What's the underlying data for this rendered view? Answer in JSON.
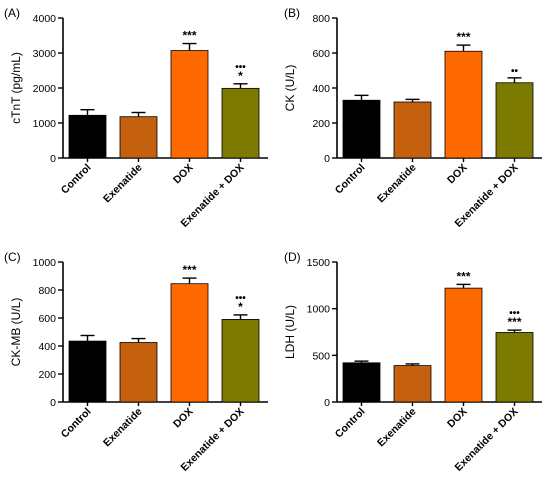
{
  "chart_data": [
    {
      "panel_label": "(A)",
      "type": "bar",
      "ylabel": "cTnT (pg/mL)",
      "ylim": [
        0,
        4000
      ],
      "yticks": [
        0,
        1000,
        2000,
        3000,
        4000
      ],
      "categories": [
        "Control",
        "Exenatide",
        "DOX",
        "Exenatide + DOX"
      ],
      "values": [
        1220,
        1180,
        3070,
        1990
      ],
      "errors": [
        160,
        120,
        200,
        130
      ],
      "annotations": [
        "",
        "",
        "***",
        "•••\n*"
      ]
    },
    {
      "panel_label": "(B)",
      "type": "bar",
      "ylabel": "CK (U/L)",
      "ylim": [
        0,
        800
      ],
      "yticks": [
        0,
        200,
        400,
        600,
        800
      ],
      "categories": [
        "Control",
        "Exenatide",
        "DOX",
        "Exenatide + DOX"
      ],
      "values": [
        330,
        320,
        610,
        430
      ],
      "errors": [
        28,
        15,
        35,
        28
      ],
      "annotations": [
        "",
        "",
        "***",
        "••"
      ]
    },
    {
      "panel_label": "(C)",
      "type": "bar",
      "ylabel": "CK-MB (U/L)",
      "ylim": [
        0,
        1000
      ],
      "yticks": [
        0,
        200,
        400,
        600,
        800,
        1000
      ],
      "categories": [
        "Control",
        "Exenatide",
        "DOX",
        "Exenatide + DOX"
      ],
      "values": [
        435,
        425,
        845,
        590
      ],
      "errors": [
        40,
        28,
        40,
        32
      ],
      "annotations": [
        "",
        "",
        "***",
        "•••\n*"
      ]
    },
    {
      "panel_label": "(D)",
      "type": "bar",
      "ylabel": "LDH (U/L)",
      "ylim": [
        0,
        1500
      ],
      "yticks": [
        0,
        500,
        1000,
        1500
      ],
      "categories": [
        "Control",
        "Exenatide",
        "DOX",
        "Exenatide + DOX"
      ],
      "values": [
        420,
        390,
        1220,
        745
      ],
      "errors": [
        18,
        18,
        40,
        25
      ],
      "annotations": [
        "",
        "",
        "***",
        "•••\n***"
      ]
    }
  ],
  "colors": {
    "Control": "#000000",
    "Exenatide": "#C4600E",
    "DOX": "#FF6A00",
    "Exenatide + DOX": "#7C7A00"
  }
}
